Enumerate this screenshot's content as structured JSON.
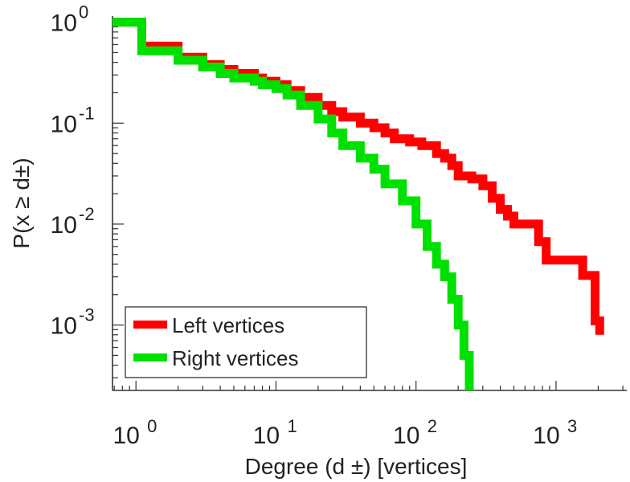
{
  "chart_data": {
    "type": "line",
    "xscale": "log",
    "yscale": "log",
    "xlim": [
      0.68,
      3200
    ],
    "ylim": [
      0.000225,
      1.15
    ],
    "xlabel": "Degree (d ±) [vertices]",
    "ylabel": "P(x ≥ d±)",
    "x_ticks": [
      {
        "value": 1,
        "base": "10",
        "exp": "0"
      },
      {
        "value": 10,
        "base": "10",
        "exp": "1"
      },
      {
        "value": 100,
        "base": "10",
        "exp": "2"
      },
      {
        "value": 1000,
        "base": "10",
        "exp": "3"
      }
    ],
    "y_ticks": [
      {
        "value": 1,
        "base": "10",
        "exp": "0"
      },
      {
        "value": 0.1,
        "base": "10",
        "exp": "-1"
      },
      {
        "value": 0.01,
        "base": "10",
        "exp": "-2"
      },
      {
        "value": 0.001,
        "base": "10",
        "exp": "-3"
      }
    ],
    "grid": false,
    "legend": "bottom-left",
    "series": [
      {
        "name": "Left vertices",
        "color": "#ff0000",
        "step": true,
        "points": [
          [
            0.68,
            1.0
          ],
          [
            1.1,
            1.0
          ],
          [
            1.1,
            0.58
          ],
          [
            2.0,
            0.58
          ],
          [
            2.0,
            0.45
          ],
          [
            3.0,
            0.45
          ],
          [
            3.0,
            0.38
          ],
          [
            4.0,
            0.38
          ],
          [
            4.0,
            0.34
          ],
          [
            5.0,
            0.34
          ],
          [
            5.0,
            0.31
          ],
          [
            6.0,
            0.31
          ],
          [
            7.0,
            0.28
          ],
          [
            8.0,
            0.26
          ],
          [
            10.0,
            0.24
          ],
          [
            12.0,
            0.21
          ],
          [
            15.0,
            0.18
          ],
          [
            20.0,
            0.15
          ],
          [
            25.0,
            0.13
          ],
          [
            30.0,
            0.115
          ],
          [
            40.0,
            0.1
          ],
          [
            50.0,
            0.09
          ],
          [
            60.0,
            0.08
          ],
          [
            70.0,
            0.07
          ],
          [
            90.0,
            0.065
          ],
          [
            110.0,
            0.06
          ],
          [
            140.0,
            0.05
          ],
          [
            160.0,
            0.045
          ],
          [
            180.0,
            0.038
          ],
          [
            200.0,
            0.03
          ],
          [
            250.0,
            0.028
          ],
          [
            300.0,
            0.024
          ],
          [
            350.0,
            0.018
          ],
          [
            400.0,
            0.014
          ],
          [
            450.0,
            0.012
          ],
          [
            500.0,
            0.01
          ],
          [
            750.0,
            0.01
          ],
          [
            750.0,
            0.0067
          ],
          [
            850.0,
            0.0067
          ],
          [
            850.0,
            0.0044
          ],
          [
            1550.0,
            0.0044
          ],
          [
            1550.0,
            0.0031
          ],
          [
            1900.0,
            0.0031
          ],
          [
            1900.0,
            0.0011
          ],
          [
            2050.0,
            0.0011
          ],
          [
            2050.0,
            0.0008
          ]
        ]
      },
      {
        "name": "Right vertices",
        "color": "#00e000",
        "step": true,
        "points": [
          [
            0.68,
            1.0
          ],
          [
            1.1,
            1.0
          ],
          [
            1.1,
            0.52
          ],
          [
            2.0,
            0.52
          ],
          [
            2.0,
            0.42
          ],
          [
            3.0,
            0.42
          ],
          [
            3.0,
            0.36
          ],
          [
            4.0,
            0.36
          ],
          [
            4.0,
            0.31
          ],
          [
            5.0,
            0.31
          ],
          [
            5.0,
            0.28
          ],
          [
            6.0,
            0.28
          ],
          [
            7.0,
            0.26
          ],
          [
            8.0,
            0.24
          ],
          [
            10.0,
            0.22
          ],
          [
            12.0,
            0.19
          ],
          [
            15.0,
            0.15
          ],
          [
            20.0,
            0.11
          ],
          [
            25.0,
            0.08
          ],
          [
            30.0,
            0.06
          ],
          [
            40.0,
            0.045
          ],
          [
            50.0,
            0.035
          ],
          [
            60.0,
            0.025
          ],
          [
            80.0,
            0.017
          ],
          [
            100.0,
            0.01
          ],
          [
            120.0,
            0.006
          ],
          [
            140.0,
            0.004
          ],
          [
            160.0,
            0.003
          ],
          [
            180.0,
            0.0018
          ],
          [
            200.0,
            0.001
          ],
          [
            220.0,
            0.0005
          ],
          [
            240.0,
            0.000225
          ]
        ]
      }
    ]
  }
}
